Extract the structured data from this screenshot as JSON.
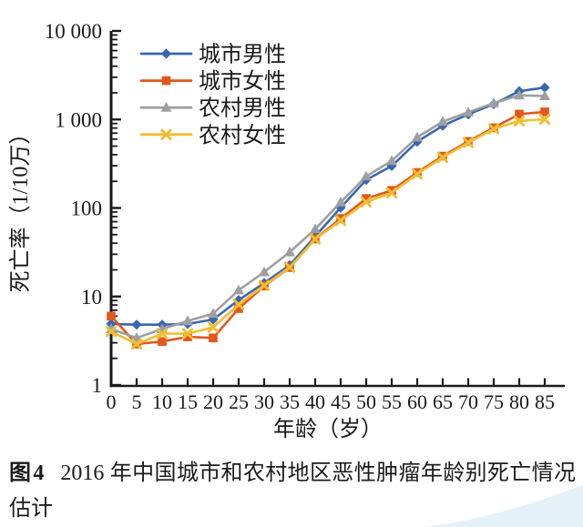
{
  "figure": {
    "caption_label": "图4",
    "caption_text": "2016 年中国城市和农村地区恶性肿瘤年龄别死亡情况估计"
  },
  "chart_data": {
    "type": "line",
    "title": "",
    "xlabel": "年龄（岁）",
    "ylabel": "死亡率（1/10万）",
    "x_unit_step": 5,
    "x": [
      0,
      5,
      10,
      15,
      20,
      25,
      30,
      35,
      40,
      45,
      50,
      55,
      60,
      65,
      70,
      75,
      80,
      85
    ],
    "y_scale": "log",
    "ylim": [
      1,
      10000
    ],
    "y_ticks": [
      "1",
      "10",
      "100",
      "1 000",
      "10 000"
    ],
    "grid": false,
    "legend_position": "top-left",
    "series": [
      {
        "key": "urban-male",
        "name": "城市男性",
        "color": "#3A67AE",
        "marker": "diamond",
        "values": [
          4.9,
          4.8,
          4.8,
          4.9,
          5.5,
          9.1,
          14.2,
          22.6,
          47.8,
          101,
          208,
          298,
          562,
          849,
          1142,
          1489,
          2086,
          2294
        ]
      },
      {
        "key": "urban-female",
        "name": "城市女性",
        "color": "#E2571C",
        "marker": "square",
        "values": [
          6.0,
          2.9,
          3.1,
          3.5,
          3.4,
          7.3,
          13.1,
          21.2,
          44.7,
          76,
          128,
          158,
          252,
          386,
          565,
          806,
          1148,
          1218
        ]
      },
      {
        "key": "rural-male",
        "name": "农村男性",
        "color": "#9D9FA2",
        "marker": "triangle",
        "values": [
          4.3,
          3.4,
          4.3,
          5.3,
          6.4,
          11.8,
          18.9,
          31.7,
          57.7,
          116,
          228,
          341,
          628,
          946,
          1208,
          1529,
          1876,
          1846
        ]
      },
      {
        "key": "rural-female",
        "name": "农村女性",
        "color": "#EFBE33",
        "marker": "x",
        "values": [
          4.0,
          2.9,
          3.8,
          3.8,
          4.5,
          8.1,
          13.3,
          21.4,
          44.5,
          72,
          117,
          148,
          242,
          372,
          548,
          782,
          962,
          1005
        ]
      }
    ],
    "axis_color": "#1a1a1a"
  },
  "decoration": {
    "corner_color": "#E4F1F8"
  }
}
